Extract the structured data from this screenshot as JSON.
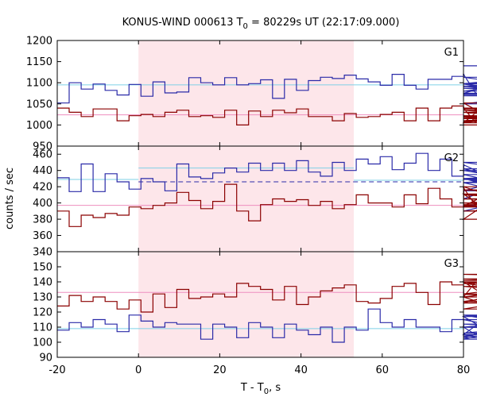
{
  "chart_data": {
    "type": "line",
    "title": {
      "prefix": "KONUS-WIND 000613 T",
      "subscript": "0",
      "suffix": " = 80229s UT (22:17:09.000)"
    },
    "xlabel": {
      "prefix": "T - T",
      "subscript": "0",
      "suffix": ", s"
    },
    "ylabel": "counts / sec",
    "xlim": [
      -20,
      80
    ],
    "x_ticks": [
      -20,
      0,
      20,
      40,
      60,
      80
    ],
    "shaded_region": {
      "x": [
        0,
        53
      ],
      "color": "#fde6ea"
    },
    "step": 2.944,
    "panels": [
      {
        "label": "G1",
        "ylim": [
          950,
          1200
        ],
        "y_ticks": [
          950,
          1000,
          1050,
          1100,
          1150,
          1200
        ],
        "series": [
          {
            "color": "#2a2aa8",
            "start": -20,
            "values": [
              1052,
              1100,
              1085,
              1097,
              1082,
              1071,
              1096,
              1068,
              1102,
              1076,
              1078,
              1112,
              1100,
              1095,
              1112,
              1095,
              1098,
              1107,
              1063,
              1108,
              1082,
              1105,
              1113,
              1110,
              1118,
              1109,
              1102,
              1094,
              1120,
              1094,
              1085,
              1108,
              1108,
              1115,
              1120,
              1075,
              1091,
              1098,
              1080,
              1097,
              1069,
              1072,
              1098,
              1113,
              1073,
              1087,
              1072,
              1092,
              1050,
              1098,
              1140
            ]
          },
          {
            "color": "#8b0000",
            "start": -20,
            "values": [
              1040,
              1030,
              1020,
              1038,
              1038,
              1010,
              1022,
              1025,
              1020,
              1030,
              1035,
              1020,
              1022,
              1018,
              1035,
              1000,
              1033,
              1020,
              1035,
              1029,
              1038,
              1020,
              1020,
              1010,
              1027,
              1018,
              1020,
              1025,
              1030,
              1010,
              1040,
              1010,
              1040,
              1045,
              1040,
              1005,
              1052,
              1005,
              1020,
              1030,
              1015,
              1022,
              1015,
              1018,
              1008,
              1010,
              1038,
              1040,
              1009,
              1035,
              1000
            ]
          }
        ],
        "lines": [
          {
            "kind": "horizontal",
            "y": 1095,
            "color": "#7fd0e6",
            "dashed": false,
            "x": [
              -20,
              80
            ]
          },
          {
            "kind": "horizontal",
            "y": 1024,
            "color": "#ee8ebf",
            "dashed": false,
            "x": [
              -20,
              80
            ]
          }
        ]
      },
      {
        "label": "G2",
        "ylim": [
          340,
          470
        ],
        "y_ticks": [
          340,
          360,
          380,
          400,
          420,
          440,
          460
        ],
        "series": [
          {
            "color": "#2a2aa8",
            "start": -20,
            "values": [
              431,
              414,
              448,
              414,
              436,
              426,
              417,
              430,
              426,
              415,
              448,
              432,
              430,
              437,
              443,
              438,
              449,
              440,
              449,
              440,
              452,
              438,
              433,
              450,
              440,
              454,
              448,
              457,
              441,
              449,
              461,
              440,
              454,
              433,
              447,
              440,
              435,
              425,
              429,
              425,
              405,
              442,
              415,
              450,
              430,
              390,
              430,
              395,
              430,
              440,
              440
            ]
          },
          {
            "color": "#8b0000",
            "start": -20,
            "values": [
              390,
              371,
              385,
              382,
              387,
              385,
              395,
              393,
              397,
              400,
              413,
              403,
              393,
              402,
              423,
              390,
              378,
              398,
              405,
              402,
              404,
              397,
              402,
              393,
              398,
              410,
              400,
              400,
              395,
              410,
              399,
              418,
              405,
              395,
              419,
              396,
              411,
              380,
              420,
              396,
              398,
              398,
              396,
              416,
              410,
              400,
              390,
              395,
              405,
              400,
              410
            ]
          }
        ],
        "lines": [
          {
            "kind": "horizontal",
            "y": 429,
            "color": "#7fd0e6",
            "dashed": false,
            "x": [
              -20,
              0
            ]
          },
          {
            "kind": "horizontal",
            "y": 443,
            "color": "#7fd0e6",
            "dashed": false,
            "x": [
              0,
              53
            ]
          },
          {
            "kind": "horizontal",
            "y": 428,
            "color": "#7fd0e6",
            "dashed": false,
            "x": [
              53,
              80
            ]
          },
          {
            "kind": "horizontal",
            "y": 426,
            "color": "#2a2aa8",
            "dashed": true,
            "x": [
              0,
              80
            ]
          },
          {
            "kind": "horizontal",
            "y": 397,
            "color": "#ee8ebf",
            "dashed": false,
            "x": [
              -20,
              80
            ]
          }
        ]
      },
      {
        "label": "G3",
        "ylim": [
          90,
          160
        ],
        "y_ticks": [
          90,
          100,
          110,
          120,
          130,
          140,
          150
        ],
        "series": [
          {
            "color": "#2a2aa8",
            "start": -20,
            "values": [
              108,
              113,
              110,
              115,
              112,
              107,
              118,
              114,
              110,
              113,
              112,
              112,
              102,
              112,
              110,
              103,
              113,
              110,
              103,
              112,
              108,
              105,
              110,
              100,
              110,
              108,
              122,
              113,
              110,
              115,
              110,
              110,
              107,
              115,
              110,
              105,
              117,
              103,
              112,
              110,
              110,
              115,
              102,
              118,
              104,
              118,
              112,
              110,
              110,
              106,
              118
            ]
          },
          {
            "color": "#8b0000",
            "start": -20,
            "values": [
              124,
              131,
              127,
              130,
              127,
              122,
              128,
              120,
              132,
              123,
              135,
              129,
              130,
              132,
              130,
              139,
              137,
              135,
              128,
              137,
              125,
              130,
              134,
              136,
              138,
              127,
              126,
              129,
              137,
              139,
              133,
              125,
              140,
              138,
              130,
              140,
              130,
              122,
              127,
              126,
              139,
              132,
              127,
              137,
              130,
              140,
              132,
              145,
              142,
              141,
              145
            ]
          }
        ],
        "lines": [
          {
            "kind": "horizontal",
            "y": 109,
            "color": "#7fd0e6",
            "dashed": false,
            "x": [
              -20,
              80
            ]
          },
          {
            "kind": "horizontal",
            "y": 133,
            "color": "#ee8ebf",
            "dashed": false,
            "x": [
              -20,
              80
            ]
          }
        ]
      }
    ]
  }
}
